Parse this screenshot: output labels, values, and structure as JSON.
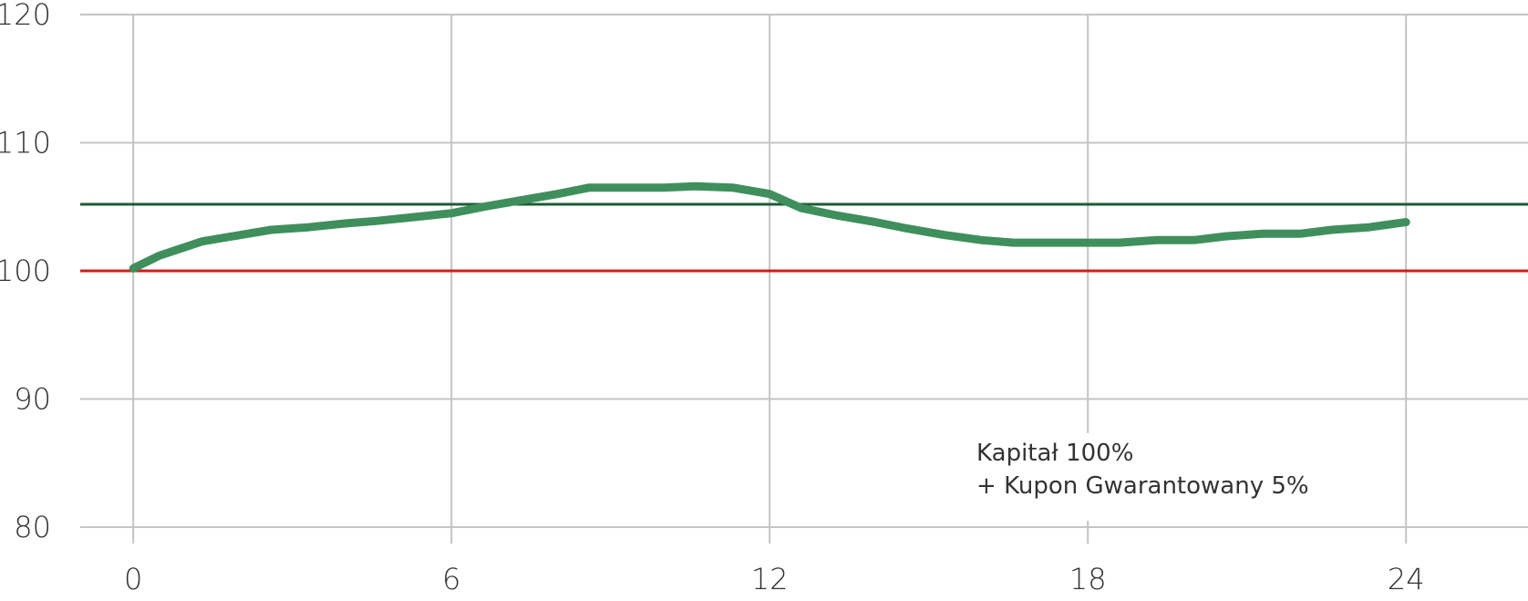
{
  "chart_data": {
    "type": "line",
    "title": "",
    "xlabel": "",
    "ylabel": "",
    "xlim": [
      -1.0,
      26.3
    ],
    "ylim": [
      80,
      120
    ],
    "grid": true,
    "x_ticks": [
      0,
      6,
      12,
      18,
      24
    ],
    "y_ticks": [
      80,
      90,
      100,
      110,
      120
    ],
    "x_tick_labels": [
      "0",
      "6",
      "12",
      "18",
      "24"
    ],
    "y_tick_labels": [
      "80",
      "90",
      "100",
      "110",
      "120"
    ],
    "colors": {
      "series": "#3f8f5c",
      "threshold_100": "#cc1f1f",
      "threshold_105": "#1f5a36",
      "grid": "#c4c4c4",
      "text": "#333333"
    },
    "reference_lines": [
      {
        "y": 105.2,
        "color": "#1f5a36"
      },
      {
        "y": 100,
        "color": "#cc1f1f"
      }
    ],
    "series": [
      {
        "x": [
          0,
          0.5,
          1.3,
          2.6,
          3.3,
          4.0,
          4.6,
          5.3,
          6.0,
          6.6,
          7.3,
          8.0,
          8.6,
          9.3,
          10.0,
          10.6,
          11.3,
          12.0,
          12.6,
          13.3,
          14.0,
          14.6,
          15.3,
          16.0,
          16.6,
          17.3,
          18.0,
          18.6,
          19.3,
          20.0,
          20.6,
          21.3,
          22.0,
          22.6,
          23.3,
          24.0
        ],
        "values": [
          100.2,
          101.2,
          102.3,
          103.2,
          103.4,
          103.7,
          103.9,
          104.2,
          104.5,
          105.0,
          105.5,
          106.0,
          106.5,
          106.5,
          106.5,
          106.6,
          106.5,
          106.0,
          104.9,
          104.3,
          103.8,
          103.3,
          102.8,
          102.4,
          102.2,
          102.2,
          102.2,
          102.2,
          102.4,
          102.4,
          102.7,
          102.9,
          102.9,
          103.2,
          103.4,
          103.8
        ]
      }
    ],
    "annotations": [
      {
        "lines": [
          "Kapitał 100%",
          "+ Kupon Gwarantowany 5%"
        ],
        "x": 15.9,
        "y": 85.2
      }
    ]
  }
}
